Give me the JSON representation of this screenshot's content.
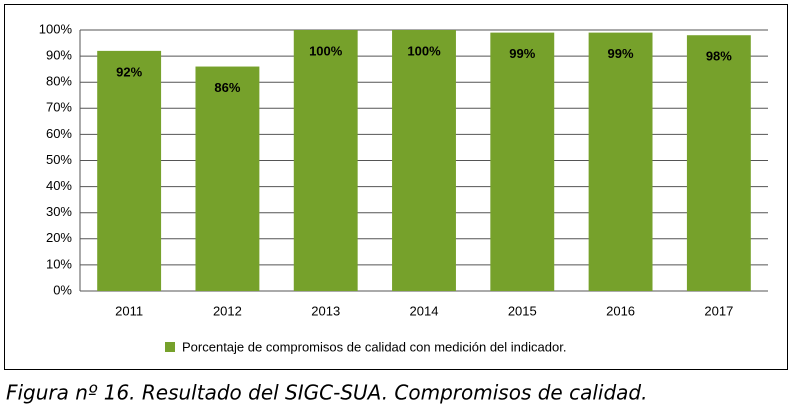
{
  "chart_data": {
    "type": "bar",
    "categories": [
      "2011",
      "2012",
      "2013",
      "2014",
      "2015",
      "2016",
      "2017"
    ],
    "series": [
      {
        "name": "Porcentaje de compromisos de calidad con medición del indicador.",
        "color": "#76a12b",
        "values": [
          92,
          86,
          100,
          100,
          99,
          99,
          98
        ],
        "value_labels": [
          "92%",
          "86%",
          "100%",
          "100%",
          "99%",
          "99%",
          "98%"
        ]
      }
    ],
    "ylim": [
      0,
      100
    ],
    "yticks": [
      {
        "value": 0,
        "label": "0%"
      },
      {
        "value": 10,
        "label": "10%"
      },
      {
        "value": 20,
        "label": "20%"
      },
      {
        "value": 30,
        "label": "30%"
      },
      {
        "value": 40,
        "label": "40%"
      },
      {
        "value": 50,
        "label": "50%"
      },
      {
        "value": 60,
        "label": "60%"
      },
      {
        "value": 70,
        "label": "70%"
      },
      {
        "value": 80,
        "label": "80%"
      },
      {
        "value": 90,
        "label": "90%"
      },
      {
        "value": 100,
        "label": "100%"
      }
    ],
    "grid": true,
    "legend": "bottom",
    "caption": "Figura nº 16. Resultado del SIGC-SUA. Compromisos de calidad."
  }
}
